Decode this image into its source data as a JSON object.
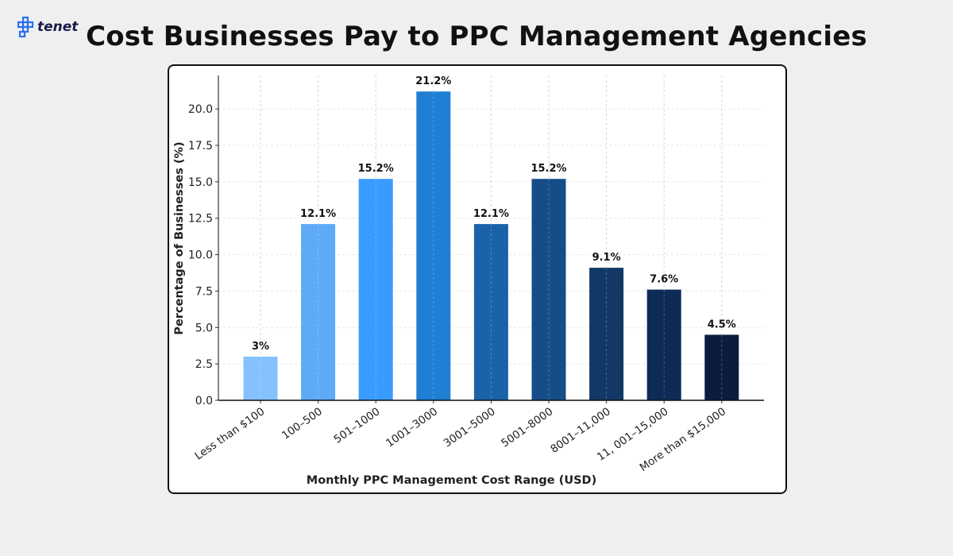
{
  "brand": {
    "logo_text": "tenet",
    "logo_color": "#2b6ff0"
  },
  "page_title": "Cost Businesses Pay to PPC Management Agencies",
  "chart_data": {
    "type": "bar",
    "title": "",
    "xlabel": "Monthly PPC Management Cost Range (USD)",
    "ylabel": "Percentage of Businesses (%)",
    "categories": [
      "Less than $100",
      "100–500",
      "501–1000",
      "1001–3000",
      "3001–5000",
      "5001–8000",
      "8001–11,000",
      "11, 001–15,000",
      "More than $15,000"
    ],
    "values": [
      3,
      12.1,
      15.2,
      21.2,
      12.1,
      15.2,
      9.1,
      7.6,
      4.5
    ],
    "data_labels": [
      "3%",
      "12.1%",
      "15.2%",
      "21.2%",
      "12.1%",
      "15.2%",
      "9.1%",
      "7.6%",
      "4.5%"
    ],
    "colors": [
      "#85c1ff",
      "#5eaaf6",
      "#3a9bff",
      "#1f7fd4",
      "#1a63a8",
      "#164d88",
      "#123865",
      "#0e2b55",
      "#0b1c3e"
    ],
    "yticks": [
      "0.0",
      "2.5",
      "5.0",
      "7.5",
      "10.0",
      "12.5",
      "15.0",
      "17.5",
      "20.0"
    ],
    "ylim": [
      0,
      22.3
    ],
    "grid": true
  }
}
